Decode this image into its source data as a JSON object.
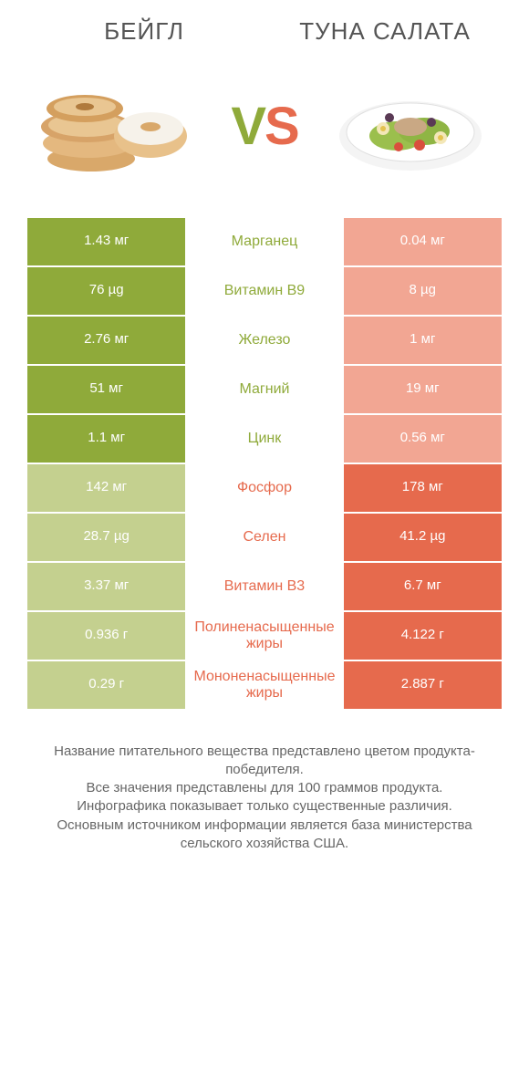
{
  "colors": {
    "green_bold": "#8faa3a",
    "green_pale": "#c4d08f",
    "red_bold": "#e66a4d",
    "red_pale": "#f2a693",
    "text_gray": "#5a5a5a",
    "background": "#ffffff"
  },
  "header": {
    "left_title": "БЕЙГЛ",
    "right_title": "ТУНА САЛАТА",
    "vs_v": "V",
    "vs_s": "S"
  },
  "rows": [
    {
      "left": "1.43 мг",
      "label": "Марганец",
      "right": "0.04 мг",
      "winner": "left"
    },
    {
      "left": "76 µg",
      "label": "Витамин B9",
      "right": "8 µg",
      "winner": "left"
    },
    {
      "left": "2.76 мг",
      "label": "Железо",
      "right": "1 мг",
      "winner": "left"
    },
    {
      "left": "51 мг",
      "label": "Магний",
      "right": "19 мг",
      "winner": "left"
    },
    {
      "left": "1.1 мг",
      "label": "Цинк",
      "right": "0.56 мг",
      "winner": "left"
    },
    {
      "left": "142 мг",
      "label": "Фосфор",
      "right": "178 мг",
      "winner": "right"
    },
    {
      "left": "28.7 µg",
      "label": "Селен",
      "right": "41.2 µg",
      "winner": "right"
    },
    {
      "left": "3.37 мг",
      "label": "Витамин B3",
      "right": "6.7 мг",
      "winner": "right"
    },
    {
      "left": "0.936 г",
      "label": "Полиненасыщенные жиры",
      "right": "4.122 г",
      "winner": "right"
    },
    {
      "left": "0.29 г",
      "label": "Мононенасыщенные жиры",
      "right": "2.887 г",
      "winner": "right"
    }
  ],
  "footer": {
    "line1": "Название питательного вещества представлено цветом продукта-победителя.",
    "line2": "Все значения представлены для 100 граммов продукта.",
    "line3": "Инфографика показывает только существенные различия.",
    "line4": "Основным источником информации является база министерства сельского хозяйства США."
  }
}
